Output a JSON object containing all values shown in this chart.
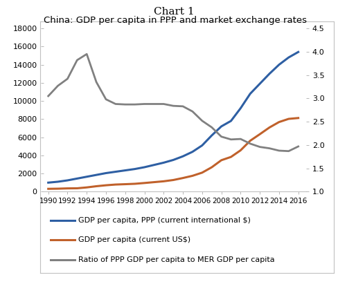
{
  "title": "Chart 1",
  "chart_title": "China: GDP per capita in PPP and market exchange rates",
  "years": [
    1990,
    1991,
    1992,
    1993,
    1994,
    1995,
    1996,
    1997,
    1998,
    1999,
    2000,
    2001,
    2002,
    2003,
    2004,
    2005,
    2006,
    2007,
    2008,
    2009,
    2010,
    2011,
    2012,
    2013,
    2014,
    2015,
    2016
  ],
  "ppp": [
    1000,
    1100,
    1250,
    1450,
    1650,
    1850,
    2050,
    2200,
    2350,
    2500,
    2700,
    2950,
    3200,
    3500,
    3900,
    4400,
    5100,
    6200,
    7200,
    7800,
    9200,
    10800,
    11900,
    13000,
    14000,
    14800,
    15400
  ],
  "mer": [
    317,
    333,
    366,
    377,
    473,
    604,
    709,
    789,
    828,
    872,
    959,
    1053,
    1148,
    1288,
    1508,
    1753,
    2100,
    2694,
    3471,
    3832,
    4561,
    5618,
    6338,
    7078,
    7678,
    8028,
    8123
  ],
  "ratio": [
    3.05,
    3.27,
    3.42,
    3.82,
    3.95,
    3.35,
    2.98,
    2.88,
    2.87,
    2.87,
    2.88,
    2.88,
    2.88,
    2.84,
    2.83,
    2.72,
    2.52,
    2.38,
    2.18,
    2.12,
    2.13,
    2.03,
    1.96,
    1.93,
    1.88,
    1.87,
    1.97
  ],
  "ppp_color": "#2e5fa3",
  "mer_color": "#c0612b",
  "ratio_color": "#808080",
  "ylim_left": [
    0,
    18000
  ],
  "ylim_right": [
    1.0,
    4.5
  ],
  "yticks_left": [
    0,
    2000,
    4000,
    6000,
    8000,
    10000,
    12000,
    14000,
    16000,
    18000
  ],
  "yticks_right": [
    1.0,
    1.5,
    2.0,
    2.5,
    3.0,
    3.5,
    4.0,
    4.5
  ],
  "xticks": [
    1990,
    1992,
    1994,
    1996,
    1998,
    2000,
    2002,
    2004,
    2006,
    2008,
    2010,
    2012,
    2014,
    2016
  ],
  "legend_ppp": "GDP per capita, PPP (current international $)",
  "legend_mer": "GDP per capita (current US$)",
  "legend_ratio": "Ratio of PPP GDP per capita to MER GDP per capita",
  "background_color": "#ffffff"
}
